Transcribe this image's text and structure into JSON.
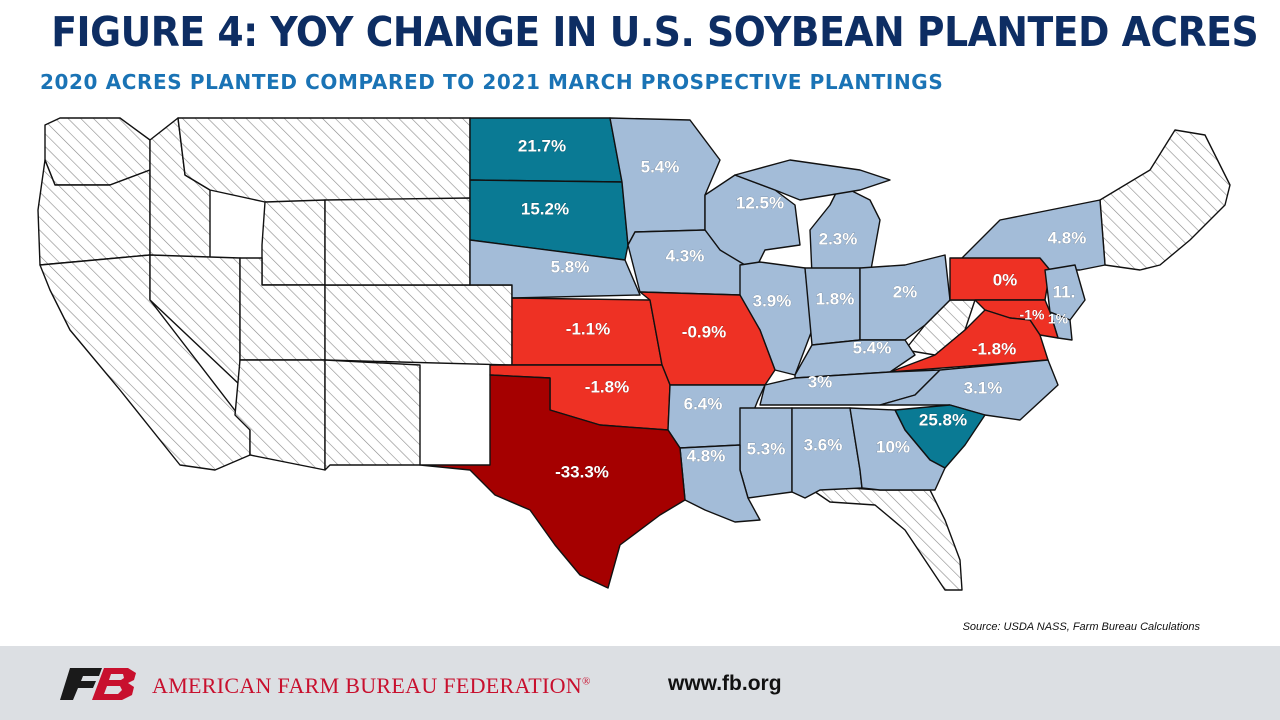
{
  "title": "FIGURE 4: YOY CHANGE IN U.S. SOYBEAN PLANTED ACRES",
  "subtitle": "2020 ACRES PLANTED COMPARED TO 2021 MARCH PROSPECTIVE PLANTINGS",
  "source": "Source: USDA NASS, Farm Bureau Calculations",
  "footer": {
    "organization": "AMERICAN FARM BUREAU FEDERATION",
    "registered_mark": "®",
    "website": "www.fb.org",
    "logo_icon": "fb-logo-icon"
  },
  "colors": {
    "large_increase": "#0a7a94",
    "increase": "#a3bcd8",
    "decrease": "#ee3124",
    "large_decrease": "#a50000",
    "no_data": "hatched"
  },
  "map_data": {
    "type": "choropleth",
    "measure": "YoY change in soybean planted acres",
    "states": {
      "ND": "21.7%",
      "SD": "15.2%",
      "MN": "5.4%",
      "WI": "12.5%",
      "MI": "2.3%",
      "NE": "5.8%",
      "IA": "4.3%",
      "IL": "3.9%",
      "IN": "1.8%",
      "OH": "2%",
      "NY": "4.8%",
      "PA": "0%",
      "NJ": "11.",
      "DE": "1%",
      "MD": "-1%",
      "KS": "-1.1%",
      "MO": "-0.9%",
      "KY": "5.4%",
      "VA": "-1.8%",
      "OK": "-1.8%",
      "AR": "6.4%",
      "TN": "3%",
      "NC": "3.1%",
      "SC": "25.8%",
      "MS": "5.3%",
      "AL": "3.6%",
      "GA": "10%",
      "LA": "4.8%",
      "TX": "-33.3%"
    }
  }
}
